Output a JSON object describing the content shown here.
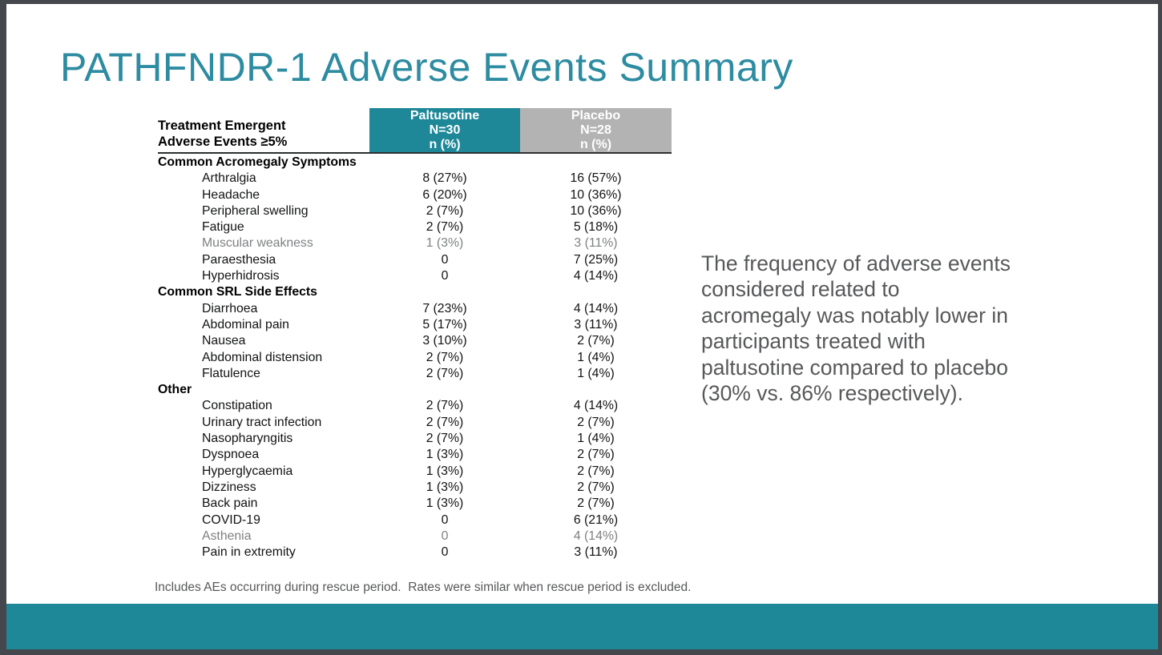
{
  "slide": {
    "title": "PATHFNDR-1 Adverse Events Summary",
    "commentary": "The frequency of adverse events\nconsidered related to\nacromegaly was notably lower in\nparticipants treated with\npaltusotine compared to placebo\n(30% vs. 86% respectively).",
    "footnote": "Includes AEs occurring during rescue period.  Rates were similar when rescue period is excluded."
  },
  "table": {
    "row_header": "Treatment Emergent\nAdverse Events ≥5%",
    "columns": [
      {
        "name": "Paltusotine",
        "n": "N=30",
        "unit": "n (%)"
      },
      {
        "name": "Placebo",
        "n": "N=28",
        "unit": "n (%)"
      }
    ],
    "sections": [
      {
        "label": "Common Acromegaly Symptoms",
        "rows": [
          {
            "label": "Arthralgia",
            "paltusotine": "8 (27%)",
            "placebo": "16 (57%)",
            "muted": false
          },
          {
            "label": "Headache",
            "paltusotine": "6 (20%)",
            "placebo": "10 (36%)",
            "muted": false
          },
          {
            "label": "Peripheral swelling",
            "paltusotine": "2 (7%)",
            "placebo": "10 (36%)",
            "muted": false
          },
          {
            "label": "Fatigue",
            "paltusotine": "2 (7%)",
            "placebo": "5 (18%)",
            "muted": false
          },
          {
            "label": "Muscular weakness",
            "paltusotine": "1 (3%)",
            "placebo": "3 (11%)",
            "muted": true
          },
          {
            "label": "Paraesthesia",
            "paltusotine": "0",
            "placebo": "7 (25%)",
            "muted": false
          },
          {
            "label": "Hyperhidrosis",
            "paltusotine": "0",
            "placebo": "4 (14%)",
            "muted": false
          }
        ]
      },
      {
        "label": "Common SRL Side Effects",
        "rows": [
          {
            "label": "Diarrhoea",
            "paltusotine": "7 (23%)",
            "placebo": "4 (14%)",
            "muted": false
          },
          {
            "label": "Abdominal pain",
            "paltusotine": "5 (17%)",
            "placebo": "3 (11%)",
            "muted": false
          },
          {
            "label": "Nausea",
            "paltusotine": "3 (10%)",
            "placebo": "2 (7%)",
            "muted": false
          },
          {
            "label": "Abdominal distension",
            "paltusotine": "2 (7%)",
            "placebo": "1 (4%)",
            "muted": false
          },
          {
            "label": "Flatulence",
            "paltusotine": "2 (7%)",
            "placebo": "1 (4%)",
            "muted": false
          }
        ]
      },
      {
        "label": "Other",
        "rows": [
          {
            "label": "Constipation",
            "paltusotine": "2 (7%)",
            "placebo": "4 (14%)",
            "muted": false
          },
          {
            "label": "Urinary tract infection",
            "paltusotine": "2 (7%)",
            "placebo": "2 (7%)",
            "muted": false
          },
          {
            "label": "Nasopharyngitis",
            "paltusotine": "2 (7%)",
            "placebo": "1 (4%)",
            "muted": false
          },
          {
            "label": "Dyspnoea",
            "paltusotine": "1 (3%)",
            "placebo": "2 (7%)",
            "muted": false
          },
          {
            "label": "Hyperglycaemia",
            "paltusotine": "1 (3%)",
            "placebo": "2 (7%)",
            "muted": false
          },
          {
            "label": "Dizziness",
            "paltusotine": "1 (3%)",
            "placebo": "2 (7%)",
            "muted": false
          },
          {
            "label": "Back pain",
            "paltusotine": "1 (3%)",
            "placebo": "2 (7%)",
            "muted": false
          },
          {
            "label": "COVID-19",
            "paltusotine": "0",
            "placebo": "6 (21%)",
            "muted": false
          },
          {
            "label": "Asthenia",
            "paltusotine": "0",
            "placebo": "4 (14%)",
            "muted": true
          },
          {
            "label": "Pain in extremity",
            "paltusotine": "0",
            "placebo": "3 (11%)",
            "muted": false
          }
        ]
      }
    ]
  },
  "colors": {
    "accent_teal": "#1e8899",
    "placebo_gray": "#b3b3b3",
    "title_teal": "#2d8ca1",
    "frame": "#44474b",
    "muted_text": "#7e8082",
    "commentary_text": "#57585a"
  }
}
